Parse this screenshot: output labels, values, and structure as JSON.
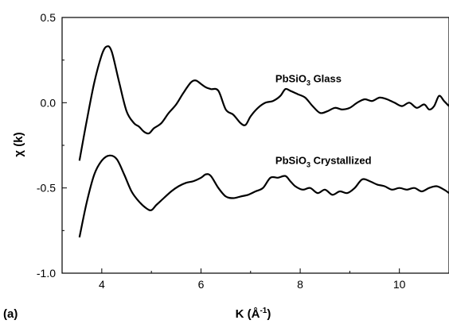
{
  "panel_label": "(a)",
  "chart_data": {
    "type": "line",
    "xlabel": "K (Å",
    "xlabel_sup": "-1",
    "xlabel_close": ")",
    "ylabel": "χ (k)",
    "xlim": [
      3.2,
      11.0
    ],
    "ylim": [
      -1.0,
      0.5
    ],
    "xticks": [
      4,
      6,
      8,
      10
    ],
    "yticks": [
      0.5,
      0.0,
      -0.5,
      -1.0
    ],
    "xtick_labels": [
      "4",
      "6",
      "8",
      "10"
    ],
    "ytick_labels": [
      "0.5",
      "0.0",
      "-0.5",
      "-1.0"
    ],
    "grid": false,
    "series": [
      {
        "name": "PbSiO3 Glass",
        "label_main": "PbSiO",
        "label_sub": "3",
        "label_rest": " Glass",
        "label_pos": [
          7.5,
          0.12
        ],
        "x": [
          3.55,
          3.7,
          3.85,
          4.0,
          4.1,
          4.2,
          4.35,
          4.5,
          4.65,
          4.75,
          4.85,
          4.95,
          5.05,
          5.2,
          5.35,
          5.5,
          5.65,
          5.8,
          5.9,
          6.0,
          6.1,
          6.2,
          6.35,
          6.5,
          6.65,
          6.8,
          6.9,
          7.0,
          7.15,
          7.3,
          7.45,
          7.6,
          7.7,
          7.8,
          7.95,
          8.1,
          8.25,
          8.4,
          8.55,
          8.7,
          8.85,
          9.0,
          9.15,
          9.3,
          9.45,
          9.6,
          9.75,
          9.9,
          10.05,
          10.2,
          10.35,
          10.5,
          10.6,
          10.7,
          10.8,
          10.9,
          11.0
        ],
        "y": [
          -0.34,
          -0.1,
          0.12,
          0.28,
          0.33,
          0.3,
          0.12,
          -0.05,
          -0.12,
          -0.14,
          -0.17,
          -0.18,
          -0.15,
          -0.12,
          -0.06,
          -0.01,
          0.06,
          0.12,
          0.13,
          0.11,
          0.09,
          0.08,
          0.07,
          -0.04,
          -0.07,
          -0.12,
          -0.13,
          -0.08,
          -0.03,
          0.0,
          0.01,
          0.04,
          0.08,
          0.07,
          0.05,
          0.03,
          -0.02,
          -0.06,
          -0.05,
          -0.03,
          -0.04,
          -0.03,
          0.0,
          0.02,
          0.01,
          0.03,
          0.02,
          0.0,
          -0.02,
          0.0,
          -0.03,
          -0.01,
          -0.04,
          -0.02,
          0.04,
          0.01,
          -0.02
        ]
      },
      {
        "name": "PbSiO3 Crystallized",
        "label_main": "PbSiO",
        "label_sub": "3",
        "label_rest": " Crystallized",
        "label_pos": [
          7.5,
          -0.36
        ],
        "x": [
          3.55,
          3.7,
          3.85,
          4.0,
          4.15,
          4.3,
          4.45,
          4.6,
          4.75,
          4.9,
          5.0,
          5.1,
          5.25,
          5.4,
          5.55,
          5.7,
          5.85,
          6.0,
          6.1,
          6.2,
          6.35,
          6.5,
          6.65,
          6.8,
          6.95,
          7.1,
          7.25,
          7.4,
          7.55,
          7.7,
          7.8,
          7.9,
          8.05,
          8.2,
          8.35,
          8.5,
          8.65,
          8.8,
          8.95,
          9.1,
          9.25,
          9.4,
          9.55,
          9.7,
          9.85,
          10.0,
          10.15,
          10.3,
          10.45,
          10.6,
          10.75,
          10.9,
          11.0
        ],
        "y": [
          -0.79,
          -0.58,
          -0.42,
          -0.34,
          -0.31,
          -0.33,
          -0.42,
          -0.52,
          -0.58,
          -0.62,
          -0.63,
          -0.6,
          -0.56,
          -0.52,
          -0.49,
          -0.47,
          -0.46,
          -0.44,
          -0.42,
          -0.43,
          -0.5,
          -0.55,
          -0.56,
          -0.55,
          -0.54,
          -0.52,
          -0.5,
          -0.44,
          -0.44,
          -0.43,
          -0.46,
          -0.49,
          -0.51,
          -0.5,
          -0.53,
          -0.51,
          -0.54,
          -0.52,
          -0.53,
          -0.5,
          -0.45,
          -0.46,
          -0.48,
          -0.49,
          -0.51,
          -0.5,
          -0.51,
          -0.5,
          -0.52,
          -0.5,
          -0.49,
          -0.51,
          -0.53
        ]
      }
    ]
  }
}
